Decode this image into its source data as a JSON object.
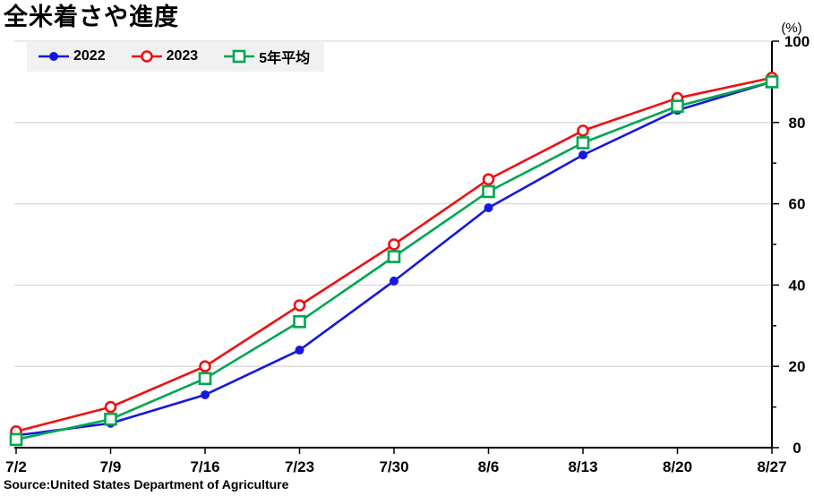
{
  "title": "全米着さや進度",
  "unit_label": "(%)",
  "source": "Source:United States Department of Agriculture",
  "colors": {
    "grid": "#d9d9d9",
    "axis": "#000000",
    "legend_bg": "#f1f1f1",
    "text": "#000000"
  },
  "chart_data": {
    "type": "line",
    "title": "全米着さや進度",
    "categories": [
      "7/2",
      "7/9",
      "7/16",
      "7/23",
      "7/30",
      "8/6",
      "8/13",
      "8/20",
      "8/27"
    ],
    "series": [
      {
        "name": "2022",
        "color": "#1717e0",
        "marker": "filled-circle",
        "values": [
          3,
          6,
          13,
          24,
          41,
          59,
          72,
          83,
          90
        ]
      },
      {
        "name": "2023",
        "color": "#ee1111",
        "marker": "open-circle",
        "values": [
          4,
          10,
          20,
          35,
          50,
          66,
          78,
          86,
          91
        ]
      },
      {
        "name": "5年平均",
        "color": "#00a651",
        "marker": "open-square",
        "values": [
          2,
          7,
          17,
          31,
          47,
          63,
          75,
          84,
          90
        ]
      }
    ],
    "ylabel": "(%)",
    "ylim": [
      0,
      100
    ],
    "y_major_ticks": [
      0,
      20,
      40,
      60,
      80,
      100
    ],
    "y_minor_step": 10,
    "y_axis_side": "right",
    "grid": "horizontal-major-gridlines",
    "legend_position": "top-left"
  }
}
